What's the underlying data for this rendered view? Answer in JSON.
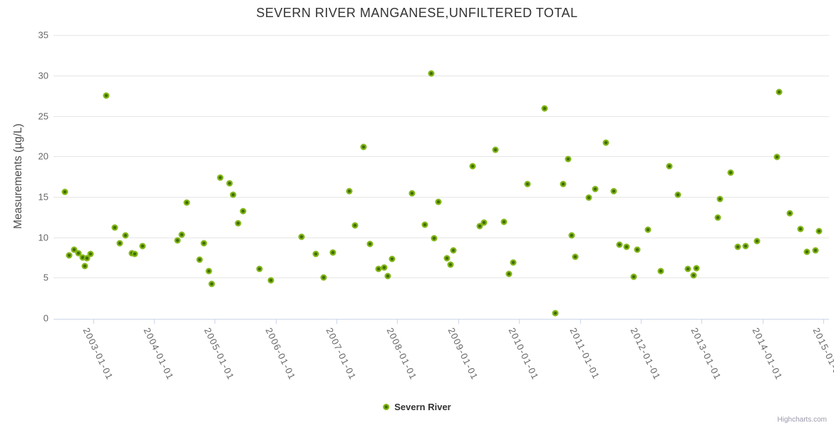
{
  "chart": {
    "title": "SEVERN RIVER MANGANESE,UNFILTERED TOTAL",
    "credits": "Highcharts.com"
  },
  "legend": {
    "label": "Severn River"
  },
  "colors": {
    "title": "#333333",
    "axis_labels": "#666666",
    "y_axis_title": "#4d4d4d",
    "gridline": "#e6e6e6",
    "axis_line": "#ccd6eb",
    "marker_outer": "#82b617",
    "marker_inner": "#3f6d04"
  },
  "chart_data": {
    "type": "scatter",
    "title": "SEVERN RIVER MANGANESE,UNFILTERED TOTAL",
    "xlabel": "",
    "ylabel": "Measurements (µg/L)",
    "ylim": [
      0,
      35
    ],
    "y_ticks": [
      0,
      5,
      10,
      15,
      20,
      25,
      30,
      35
    ],
    "x_tick_labels": [
      "2003-01-01",
      "2004-01-01",
      "2005-01-01",
      "2006-01-01",
      "2007-01-01",
      "2008-01-01",
      "2009-01-01",
      "2010-01-01",
      "2011-01-01",
      "2012-01-01",
      "2013-01-01",
      "2014-01-01",
      "2015-01-01"
    ],
    "grid": "horizontal",
    "legend_position": "bottom-center",
    "series": [
      {
        "name": "Severn River",
        "points": [
          [
            "2002-07-13",
            15.6
          ],
          [
            "2002-08-10",
            7.8
          ],
          [
            "2002-09-07",
            8.5
          ],
          [
            "2002-10-03",
            8.0
          ],
          [
            "2002-10-28",
            7.5
          ],
          [
            "2002-11-10",
            6.4
          ],
          [
            "2002-11-23",
            7.4
          ],
          [
            "2002-12-14",
            7.9
          ],
          [
            "2003-03-19",
            27.5
          ],
          [
            "2003-05-10",
            11.2
          ],
          [
            "2003-06-07",
            9.3
          ],
          [
            "2003-07-14",
            10.2
          ],
          [
            "2003-08-19",
            8.0
          ],
          [
            "2003-09-08",
            7.9
          ],
          [
            "2003-10-23",
            8.9
          ],
          [
            "2004-05-21",
            9.6
          ],
          [
            "2004-06-17",
            10.3
          ],
          [
            "2004-07-15",
            14.3
          ],
          [
            "2004-09-30",
            7.2
          ],
          [
            "2004-10-25",
            9.3
          ],
          [
            "2004-11-24",
            5.8
          ],
          [
            "2004-12-12",
            4.2
          ],
          [
            "2005-02-01",
            17.4
          ],
          [
            "2005-03-29",
            16.7
          ],
          [
            "2005-04-18",
            15.3
          ],
          [
            "2005-05-21",
            11.7
          ],
          [
            "2005-06-18",
            13.2
          ],
          [
            "2005-09-26",
            6.1
          ],
          [
            "2005-12-01",
            4.7
          ],
          [
            "2006-06-05",
            10.1
          ],
          [
            "2006-08-29",
            7.9
          ],
          [
            "2006-10-16",
            5.0
          ],
          [
            "2006-12-10",
            8.1
          ],
          [
            "2007-03-19",
            15.7
          ],
          [
            "2007-04-21",
            11.5
          ],
          [
            "2007-06-11",
            21.2
          ],
          [
            "2007-07-21",
            9.2
          ],
          [
            "2007-09-07",
            6.1
          ],
          [
            "2007-10-13",
            6.3
          ],
          [
            "2007-11-02",
            5.2
          ],
          [
            "2007-11-29",
            7.3
          ],
          [
            "2008-03-28",
            15.4
          ],
          [
            "2008-06-12",
            11.6
          ],
          [
            "2008-07-23",
            30.3
          ],
          [
            "2008-08-09",
            9.9
          ],
          [
            "2008-09-03",
            14.4
          ],
          [
            "2008-10-24",
            7.4
          ],
          [
            "2008-11-13",
            6.6
          ],
          [
            "2008-12-03",
            8.4
          ],
          [
            "2009-03-29",
            18.8
          ],
          [
            "2009-05-08",
            11.4
          ],
          [
            "2009-06-05",
            11.8
          ],
          [
            "2009-08-11",
            20.8
          ],
          [
            "2009-09-30",
            11.9
          ],
          [
            "2009-10-31",
            5.5
          ],
          [
            "2009-11-27",
            6.9
          ],
          [
            "2010-02-20",
            16.6
          ],
          [
            "2010-06-02",
            25.9
          ],
          [
            "2010-08-06",
            0.6
          ],
          [
            "2010-09-22",
            16.6
          ],
          [
            "2010-10-23",
            19.7
          ],
          [
            "2010-11-12",
            10.2
          ],
          [
            "2010-12-04",
            7.6
          ],
          [
            "2011-02-24",
            14.9
          ],
          [
            "2011-04-02",
            16.0
          ],
          [
            "2011-06-06",
            21.7
          ],
          [
            "2011-07-22",
            15.7
          ],
          [
            "2011-08-24",
            9.1
          ],
          [
            "2011-10-07",
            8.8
          ],
          [
            "2011-11-17",
            5.1
          ],
          [
            "2011-12-09",
            8.5
          ],
          [
            "2012-02-11",
            10.9
          ],
          [
            "2012-05-02",
            5.8
          ],
          [
            "2012-06-22",
            18.8
          ],
          [
            "2012-08-09",
            15.3
          ],
          [
            "2012-10-10",
            6.1
          ],
          [
            "2012-11-14",
            5.3
          ],
          [
            "2012-11-30",
            6.2
          ],
          [
            "2013-04-06",
            12.4
          ],
          [
            "2013-04-21",
            14.7
          ],
          [
            "2013-06-23",
            18.0
          ],
          [
            "2013-08-06",
            8.8
          ],
          [
            "2013-09-21",
            8.9
          ],
          [
            "2013-11-27",
            9.5
          ],
          [
            "2014-03-28",
            19.9
          ],
          [
            "2014-04-09",
            28.0
          ],
          [
            "2014-06-14",
            13.0
          ],
          [
            "2014-08-15",
            11.0
          ],
          [
            "2014-09-22",
            8.2
          ],
          [
            "2014-11-13",
            8.4
          ],
          [
            "2014-12-07",
            10.8
          ]
        ]
      }
    ]
  }
}
